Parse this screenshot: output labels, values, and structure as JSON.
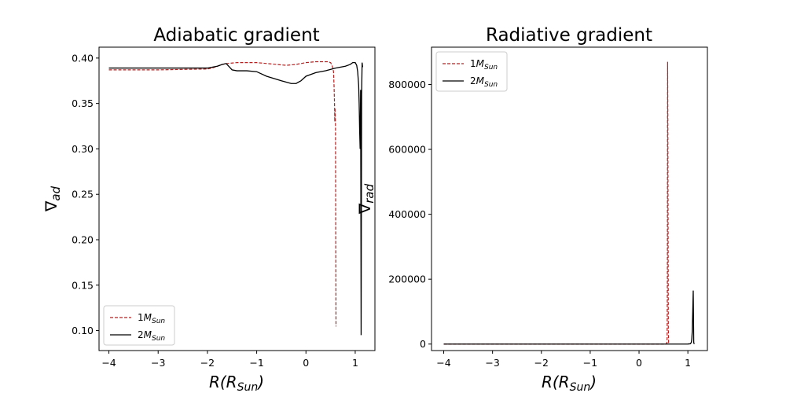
{
  "chart_data": [
    {
      "type": "line",
      "title": "Adiabatic gradient",
      "xlabel_main": "R(R",
      "xlabel_sub": "Sun",
      "xlabel_tail": ")",
      "ylabel_symbol": "∇",
      "ylabel_sub": "ad",
      "xlim": [
        -4.2,
        1.4
      ],
      "ylim": [
        0.078,
        0.412
      ],
      "xticks": [
        -4,
        -3,
        -2,
        -1,
        0,
        1
      ],
      "xtick_labels": [
        "−4",
        "−3",
        "−2",
        "−1",
        "0",
        "1"
      ],
      "yticks": [
        0.1,
        0.15,
        0.2,
        0.25,
        0.3,
        0.35,
        0.4
      ],
      "ytick_labels": [
        "0.10",
        "0.15",
        "0.20",
        "0.25",
        "0.30",
        "0.35",
        "0.40"
      ],
      "legend_position": "lower-left",
      "series": [
        {
          "name": "1M",
          "name_sub": "Sun",
          "color": "#b22222",
          "dash": "dashed",
          "x": [
            -4.0,
            -3.0,
            -2.0,
            -1.9,
            -1.8,
            -1.7,
            -1.6,
            -1.4,
            -1.0,
            -0.6,
            -0.4,
            -0.2,
            0.0,
            0.2,
            0.45,
            0.5,
            0.53,
            0.56,
            0.57,
            0.58,
            0.585,
            0.59,
            0.6,
            0.605,
            0.61,
            0.62
          ],
          "y": [
            0.387,
            0.387,
            0.388,
            0.389,
            0.391,
            0.393,
            0.394,
            0.395,
            0.395,
            0.393,
            0.392,
            0.393,
            0.395,
            0.396,
            0.396,
            0.395,
            0.392,
            0.385,
            0.37,
            0.35,
            0.33,
            0.345,
            0.325,
            0.2,
            0.105,
            0.105
          ]
        },
        {
          "name": "2M",
          "name_sub": "Sun",
          "color": "#000000",
          "dash": "solid",
          "x": [
            -4.0,
            -3.0,
            -2.0,
            -1.8,
            -1.7,
            -1.62,
            -1.55,
            -1.5,
            -1.4,
            -1.2,
            -1.0,
            -0.8,
            -0.5,
            -0.3,
            -0.2,
            -0.1,
            0.0,
            0.2,
            0.4,
            0.6,
            0.8,
            0.9,
            0.95,
            1.0,
            1.03,
            1.05,
            1.07,
            1.08,
            1.09,
            1.1,
            1.11,
            1.12,
            1.13,
            1.14,
            1.15
          ],
          "y": [
            0.389,
            0.389,
            0.389,
            0.391,
            0.393,
            0.394,
            0.39,
            0.387,
            0.386,
            0.386,
            0.385,
            0.38,
            0.375,
            0.372,
            0.372,
            0.375,
            0.38,
            0.384,
            0.386,
            0.389,
            0.391,
            0.393,
            0.395,
            0.395,
            0.392,
            0.385,
            0.37,
            0.35,
            0.32,
            0.3,
            0.365,
            0.095,
            0.36,
            0.395,
            0.39
          ]
        }
      ]
    },
    {
      "type": "line",
      "title": "Radiative gradient",
      "xlabel_main": "R(R",
      "xlabel_sub": "Sun",
      "xlabel_tail": ")",
      "ylabel_symbol": "∇",
      "ylabel_sub": "rad",
      "xlim": [
        -4.25,
        1.4
      ],
      "ylim": [
        -20000,
        915000
      ],
      "xticks": [
        -4,
        -3,
        -2,
        -1,
        0,
        1
      ],
      "xtick_labels": [
        "−4",
        "−3",
        "−2",
        "−1",
        "0",
        "1"
      ],
      "yticks": [
        0,
        200000,
        400000,
        600000,
        800000
      ],
      "ytick_labels": [
        "0",
        "200000",
        "400000",
        "600000",
        "800000"
      ],
      "legend_position": "upper-left",
      "series": [
        {
          "name": "1M",
          "name_sub": "Sun",
          "color": "#b22222",
          "dash": "dashed",
          "x": [
            -4.0,
            -2.0,
            0.0,
            0.4,
            0.5,
            0.55,
            0.57,
            0.575,
            0.58,
            0.585,
            0.59,
            0.6,
            0.605,
            0.61,
            0.62
          ],
          "y": [
            0,
            0,
            0,
            0,
            0,
            100,
            3000,
            20000,
            200000,
            870000,
            700000,
            50000,
            3000,
            200,
            0
          ]
        },
        {
          "name": "2M",
          "name_sub": "Sun",
          "color": "#000000",
          "dash": "solid",
          "x": [
            -4.0,
            -2.0,
            0.0,
            0.8,
            1.0,
            1.05,
            1.07,
            1.08,
            1.09,
            1.1,
            1.11,
            1.12,
            1.13
          ],
          "y": [
            0,
            0,
            0,
            0,
            100,
            1000,
            5000,
            15000,
            40000,
            100000,
            165000,
            5000,
            0
          ]
        }
      ]
    }
  ]
}
